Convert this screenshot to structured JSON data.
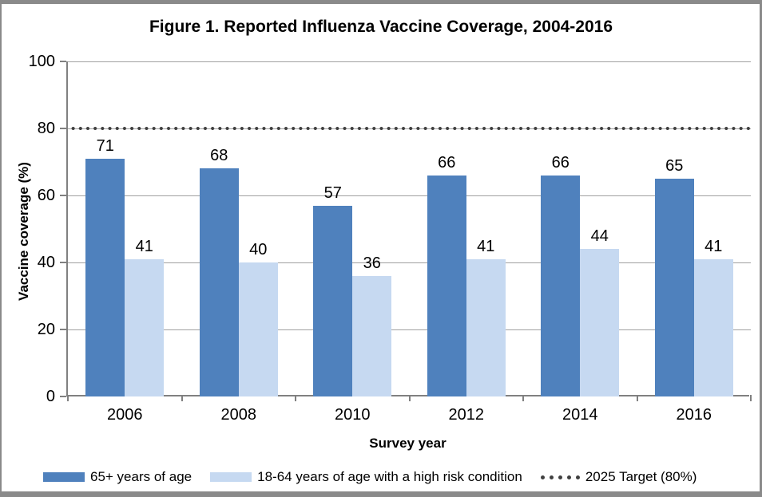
{
  "colors": {
    "accent_dark_blue": "#4f81bd",
    "accent_light_blue": "#c6d9f1",
    "target_dot_gray": "#404040",
    "gridline_gray": "#a0a0a0",
    "axis_gray": "#808080",
    "frame_gray": "#8a8a8a",
    "text": "#000000"
  },
  "chart_data": {
    "type": "bar",
    "title": "Figure 1. Reported Influenza Vaccine Coverage, 2004-2016",
    "xlabel": "Survey year",
    "ylabel": "Vaccine coverage (%)",
    "categories": [
      "2006",
      "2008",
      "2010",
      "2012",
      "2014",
      "2016"
    ],
    "series": [
      {
        "id": "65plus",
        "name": "65+ years of age",
        "color": "#4f81bd",
        "values": [
          71,
          68,
          57,
          66,
          66,
          65
        ]
      },
      {
        "id": "18-64-high-risk",
        "name": "18-64 years of age with a high risk condition",
        "color": "#c6d9f1",
        "values": [
          41,
          40,
          36,
          41,
          44,
          41
        ]
      }
    ],
    "target_line": {
      "label": "2025 Target (80%)",
      "value": 80,
      "style": "dotted",
      "color": "#404040"
    },
    "ylim": [
      0,
      100
    ],
    "yticks": [
      0,
      20,
      40,
      60,
      80,
      100
    ],
    "grid": true,
    "value_labels": true,
    "legend_position": "bottom"
  }
}
